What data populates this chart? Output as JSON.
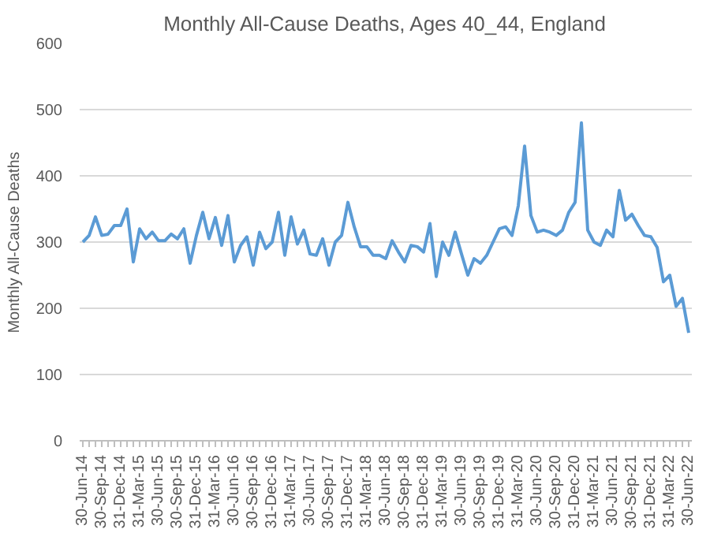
{
  "chart_data": {
    "type": "line",
    "title": "Monthly All-Cause Deaths, Ages 40_44, England",
    "ylabel": "Monthly All-Cause Deaths",
    "categories": [
      "30-Jun-14",
      null,
      null,
      "30-Sep-14",
      null,
      null,
      "31-Dec-14",
      null,
      null,
      "31-Mar-15",
      null,
      null,
      "30-Jun-15",
      null,
      null,
      "30-Sep-15",
      null,
      null,
      "31-Dec-15",
      null,
      null,
      "31-Mar-16",
      null,
      null,
      "30-Jun-16",
      null,
      null,
      "30-Sep-16",
      null,
      null,
      "31-Dec-16",
      null,
      null,
      "31-Mar-17",
      null,
      null,
      "30-Jun-17",
      null,
      null,
      "30-Sep-17",
      null,
      null,
      "31-Dec-17",
      null,
      null,
      "31-Mar-18",
      null,
      null,
      "30-Jun-18",
      null,
      null,
      "30-Sep-18",
      null,
      null,
      "31-Dec-18",
      null,
      null,
      "31-Mar-19",
      null,
      null,
      "30-Jun-19",
      null,
      null,
      "30-Sep-19",
      null,
      null,
      "31-Dec-19",
      null,
      null,
      "31-Mar-20",
      null,
      null,
      "30-Jun-20",
      null,
      null,
      "30-Sep-20",
      null,
      null,
      "31-Dec-20",
      null,
      null,
      "31-Mar-21",
      null,
      null,
      "30-Jun-21",
      null,
      null,
      "30-Sep-21",
      null,
      null,
      "31-Dec-21",
      null,
      null,
      "31-Mar-22",
      null,
      null,
      "30-Jun-22"
    ],
    "series": [
      {
        "color": "#5b9bd5",
        "values": [
          300,
          310,
          338,
          310,
          312,
          325,
          325,
          350,
          270,
          320,
          305,
          315,
          302,
          302,
          312,
          305,
          320,
          268,
          310,
          345,
          305,
          337,
          295,
          340,
          270,
          295,
          308,
          265,
          315,
          290,
          300,
          345,
          280,
          338,
          297,
          318,
          282,
          280,
          305,
          265,
          300,
          310,
          360,
          323,
          293,
          293,
          280,
          280,
          275,
          302,
          285,
          270,
          295,
          293,
          285,
          328,
          248,
          300,
          280,
          315,
          282,
          250,
          275,
          268,
          280,
          300,
          320,
          323,
          310,
          355,
          445,
          340,
          315,
          318,
          315,
          310,
          318,
          345,
          360,
          480,
          318,
          300,
          295,
          318,
          308,
          378,
          333,
          342,
          325,
          310,
          308,
          292,
          240,
          250,
          203,
          215,
          163
        ]
      }
    ],
    "ylim": [
      0,
      600
    ],
    "yticks": [
      0,
      100,
      200,
      300,
      400,
      500,
      600
    ],
    "grid": "y",
    "marker": "none",
    "line_style": "solid"
  }
}
